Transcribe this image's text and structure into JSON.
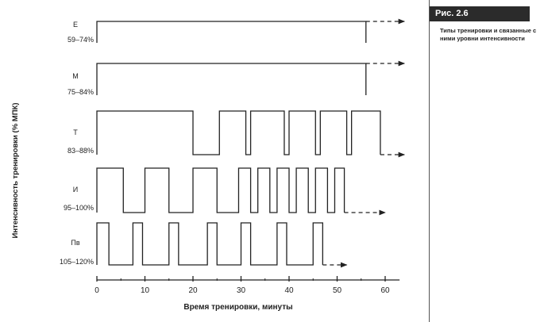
{
  "figure": {
    "tag": "Рис. 2.6",
    "caption": "Типы тренировки и связанные с ними уровни интенсивности"
  },
  "chart_data": {
    "type": "line",
    "xlabel": "Время тренировки, минуты",
    "ylabel": "Интенсивность тренировки (% МПК)",
    "xlim": [
      0,
      65
    ],
    "x_ticks": [
      0,
      10,
      20,
      30,
      40,
      50,
      60
    ],
    "x_minor_ticks": [
      5,
      15,
      25,
      35,
      45,
      55
    ],
    "grid": false,
    "series": [
      {
        "name": "Е",
        "range": "59–74%",
        "intervals": [
          [
            0,
            56
          ]
        ],
        "continues_to": 64
      },
      {
        "name": "М",
        "range": "75–84%",
        "intervals": [
          [
            0,
            56
          ]
        ],
        "continues_to": 64
      },
      {
        "name": "Т",
        "range": "83–88%",
        "intervals": [
          [
            0,
            20
          ],
          [
            25.5,
            31
          ],
          [
            32,
            39
          ],
          [
            40,
            45.5
          ],
          [
            46.5,
            52
          ],
          [
            53,
            59
          ]
        ],
        "continues_to": 64
      },
      {
        "name": "И",
        "range": "95–100%",
        "intervals": [
          [
            0,
            5.5
          ],
          [
            10,
            15
          ],
          [
            20,
            25
          ],
          [
            29.5,
            32
          ],
          [
            33.5,
            36
          ],
          [
            37.5,
            40
          ],
          [
            41.5,
            44
          ],
          [
            45.5,
            48
          ],
          [
            49.5,
            51.5
          ]
        ],
        "continues_to": 60
      },
      {
        "name": "Пв",
        "range": "105–120%",
        "intervals": [
          [
            0,
            2.5
          ],
          [
            7.5,
            9.5
          ],
          [
            15,
            17
          ],
          [
            23,
            25
          ],
          [
            30,
            32
          ],
          [
            37.5,
            39.5
          ],
          [
            45,
            47
          ]
        ],
        "continues_to": 52
      }
    ]
  }
}
